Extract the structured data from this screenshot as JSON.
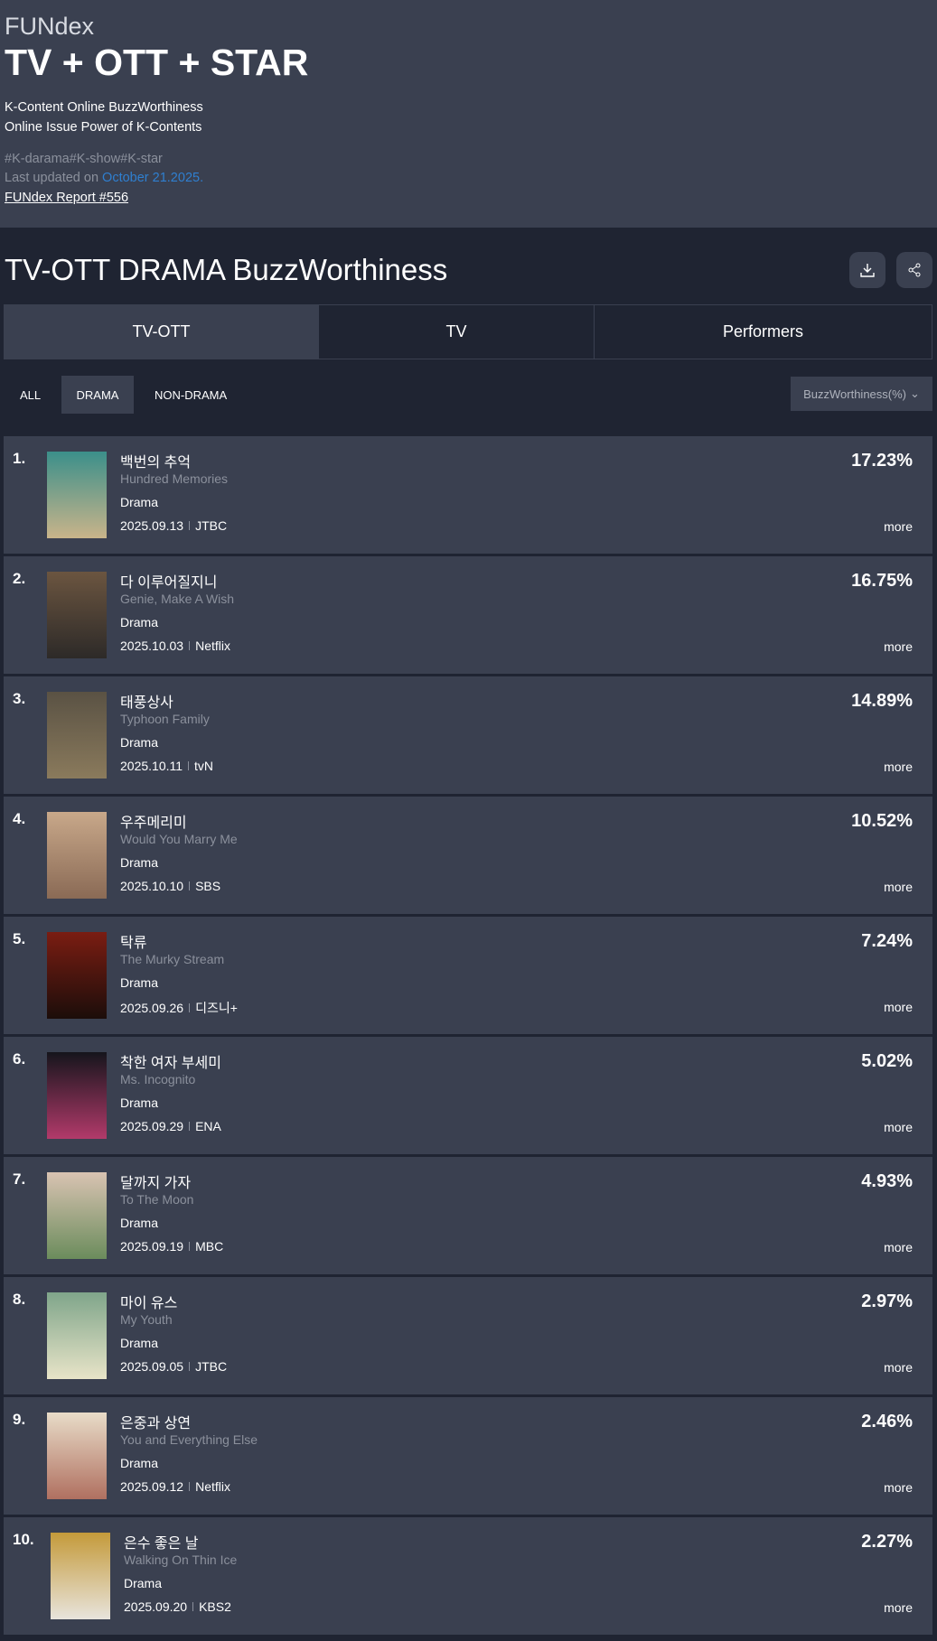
{
  "header": {
    "brand": "FUNdex",
    "title": "TV + OTT + STAR",
    "subtitle1": "K-Content Online BuzzWorthiness",
    "subtitle2": "Online Issue Power of K-Contents",
    "tags": "#K-darama#K-show#K-star",
    "updated_prefix": "Last updated on ",
    "updated_date": "October 21.2025.",
    "report": "FUNdex Report #556",
    "accent": "#2f7fd0"
  },
  "section": {
    "title": "TV-OTT DRAMA BuzzWorthiness",
    "download_icon": "download-icon",
    "share_icon": "share-icon"
  },
  "tabs": [
    {
      "label": "TV-OTT",
      "active": true
    },
    {
      "label": "TV"
    },
    {
      "label": "Performers"
    }
  ],
  "filters": [
    {
      "label": "ALL"
    },
    {
      "label": "DRAMA",
      "active": true
    },
    {
      "label": "NON-DRAMA"
    }
  ],
  "sort": {
    "label": "BuzzWorthiness(%)"
  },
  "more_label": "more",
  "items": [
    {
      "rank": "1.",
      "title": "백번의 추억",
      "english": "Hundred Memories",
      "genre": "Drama",
      "date": "2025.09.13",
      "channel": "JTBC",
      "value": "17.23%"
    },
    {
      "rank": "2.",
      "title": "다 이루어질지니",
      "english": "Genie, Make A Wish",
      "genre": "Drama",
      "date": "2025.10.03",
      "channel": "Netflix",
      "value": "16.75%"
    },
    {
      "rank": "3.",
      "title": "태풍상사",
      "english": "Typhoon Family",
      "genre": "Drama",
      "date": "2025.10.11",
      "channel": "tvN",
      "value": "14.89%"
    },
    {
      "rank": "4.",
      "title": "우주메리미",
      "english": "Would You Marry Me",
      "genre": "Drama",
      "date": "2025.10.10",
      "channel": "SBS",
      "value": "10.52%"
    },
    {
      "rank": "5.",
      "title": "탁류",
      "english": "The Murky Stream",
      "genre": "Drama",
      "date": "2025.09.26",
      "channel": "디즈니+",
      "value": "7.24%"
    },
    {
      "rank": "6.",
      "title": "착한 여자 부세미",
      "english": "Ms. Incognito",
      "genre": "Drama",
      "date": "2025.09.29",
      "channel": "ENA",
      "value": "5.02%"
    },
    {
      "rank": "7.",
      "title": "달까지 가자",
      "english": "To The Moon",
      "genre": "Drama",
      "date": "2025.09.19",
      "channel": "MBC",
      "value": "4.93%"
    },
    {
      "rank": "8.",
      "title": "마이 유스",
      "english": "My Youth",
      "genre": "Drama",
      "date": "2025.09.05",
      "channel": "JTBC",
      "value": "2.97%"
    },
    {
      "rank": "9.",
      "title": "은중과 상연",
      "english": "You and Everything Else",
      "genre": "Drama",
      "date": "2025.09.12",
      "channel": "Netflix",
      "value": "2.46%"
    },
    {
      "rank": "10.",
      "title": "은수 좋은 날",
      "english": "Walking On Thin Ice",
      "genre": "Drama",
      "date": "2025.09.20",
      "channel": "KBS2",
      "value": "2.27%"
    }
  ]
}
